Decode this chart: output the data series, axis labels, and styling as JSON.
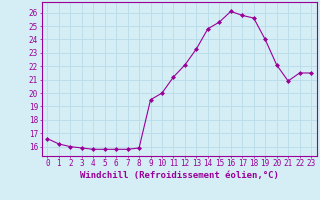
{
  "x": [
    0,
    1,
    2,
    3,
    4,
    5,
    6,
    7,
    8,
    9,
    10,
    11,
    12,
    13,
    14,
    15,
    16,
    17,
    18,
    19,
    20,
    21,
    22,
    23
  ],
  "y": [
    16.6,
    16.2,
    16.0,
    15.9,
    15.8,
    15.8,
    15.8,
    15.8,
    15.9,
    19.5,
    20.0,
    21.2,
    22.1,
    23.3,
    24.8,
    25.3,
    26.1,
    25.8,
    25.6,
    24.0,
    22.1,
    20.9,
    21.5,
    21.5
  ],
  "line_color": "#990099",
  "marker": "D",
  "markersize": 2.0,
  "linewidth": 0.8,
  "xlabel": "Windchill (Refroidissement éolien,°C)",
  "xlabel_fontsize": 6.5,
  "xlabel_color": "#990099",
  "ylabel_ticks": [
    16,
    17,
    18,
    19,
    20,
    21,
    22,
    23,
    24,
    25,
    26
  ],
  "ylim": [
    15.3,
    26.8
  ],
  "xlim": [
    -0.5,
    23.5
  ],
  "xtick_labels": [
    "0",
    "1",
    "2",
    "3",
    "4",
    "5",
    "6",
    "7",
    "8",
    "9",
    "10",
    "11",
    "12",
    "13",
    "14",
    "15",
    "16",
    "17",
    "18",
    "19",
    "20",
    "21",
    "22",
    "23"
  ],
  "background_color": "#d5edf5",
  "grid_color": "#b8dcea",
  "tick_color": "#990099",
  "tick_fontsize": 5.5,
  "spine_color": "#990099"
}
